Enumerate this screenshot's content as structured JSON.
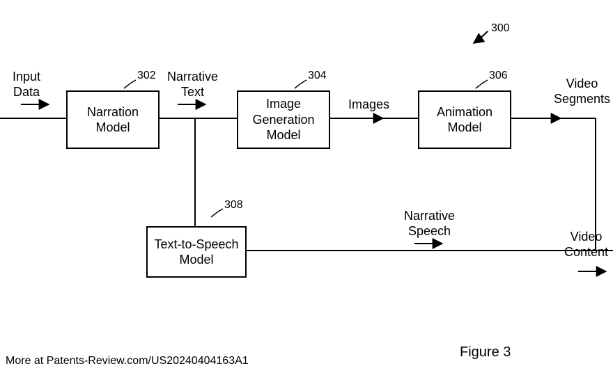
{
  "figure": {
    "ref_main": "300",
    "caption": "Figure 3",
    "footer": "More at Patents-Review.com/US20240404163A1",
    "stroke": "#000000",
    "stroke_width": 2,
    "font_size_box": 18,
    "font_size_label": 18,
    "font_size_ref": 16
  },
  "boxes": {
    "narration": {
      "label": "Narration\nModel",
      "ref": "302"
    },
    "imagegen": {
      "label": "Image\nGeneration\nModel",
      "ref": "304"
    },
    "animation": {
      "label": "Animation\nModel",
      "ref": "306"
    },
    "tts": {
      "label": "Text-to-Speech\nModel",
      "ref": "308"
    }
  },
  "edge_labels": {
    "input": "Input\nData",
    "narrative": "Narrative\nText",
    "images": "Images",
    "segments": "Video\nSegments",
    "speech": "Narrative\nSpeech",
    "content": "Video\nContent"
  }
}
